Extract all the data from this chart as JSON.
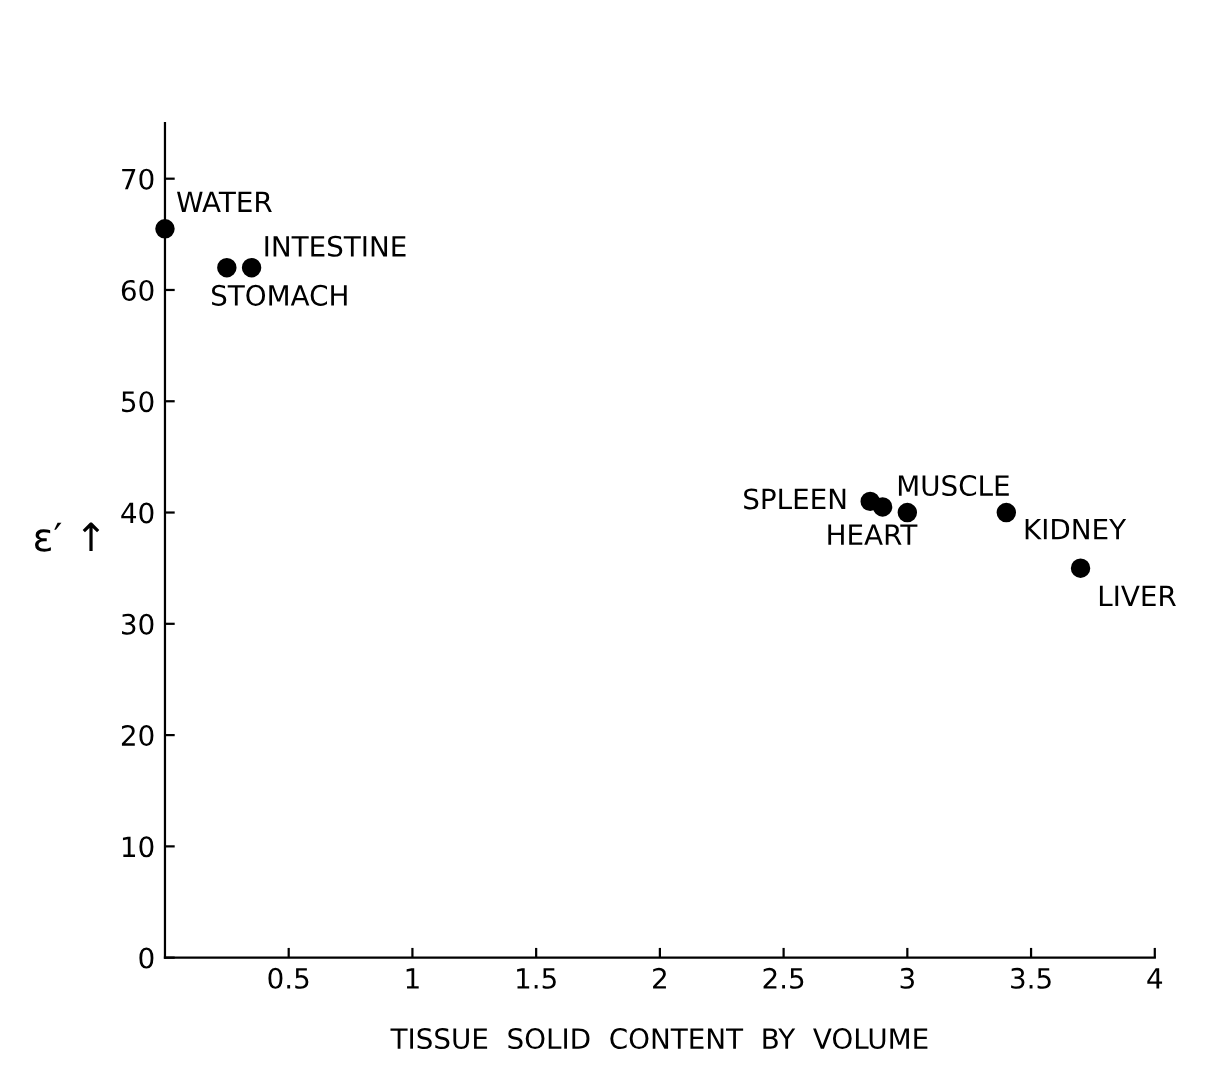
{
  "chart_data": {
    "type": "scatter",
    "xlabel": "TISSUE  SOLID  CONTENT  BY  VOLUME",
    "ylabel": "ε′ ↑",
    "x": [
      0,
      0.25,
      0.35,
      2.85,
      2.9,
      3.0,
      3.4,
      3.7
    ],
    "values": [
      65.5,
      62,
      62,
      41,
      40.5,
      40,
      40,
      35
    ],
    "color": "#000000",
    "marker": "circle",
    "annotations": [
      {
        "text": "WATER",
        "x": 0,
        "y": 65.5
      },
      {
        "text": "STOMACH",
        "x": 0.25,
        "y": 62
      },
      {
        "text": "INTESTINE",
        "x": 0.35,
        "y": 62
      },
      {
        "text": "SPLEEN",
        "x": 2.85,
        "y": 41
      },
      {
        "text": "HEART",
        "x": 2.9,
        "y": 40.5
      },
      {
        "text": "MUSCLE",
        "x": 3.0,
        "y": 40
      },
      {
        "text": "KIDNEY",
        "x": 3.4,
        "y": 40
      },
      {
        "text": "LIVER",
        "x": 3.7,
        "y": 35
      }
    ],
    "xlim": [
      0,
      4
    ],
    "ylim": [
      0,
      75
    ],
    "xticks": [
      0.5,
      1,
      1.5,
      2,
      2.5,
      3,
      3.5,
      4
    ],
    "yticks": [
      0,
      10,
      20,
      30,
      40,
      50,
      60,
      70
    ],
    "grid": false
  }
}
